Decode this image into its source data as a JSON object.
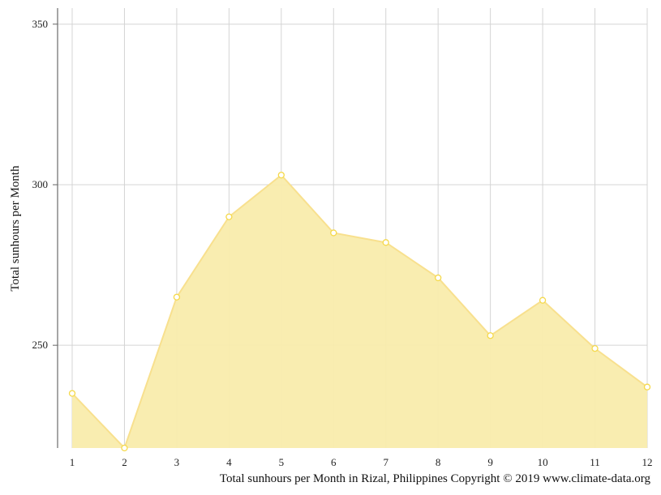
{
  "chart_data": {
    "type": "area",
    "title": "",
    "xlabel": "",
    "ylabel": "Total sunhours per Month",
    "x": [
      1,
      2,
      3,
      4,
      5,
      6,
      7,
      8,
      9,
      10,
      11,
      12
    ],
    "series": [
      {
        "values": [
          235,
          218,
          265,
          290,
          303,
          285,
          282,
          271,
          253,
          264,
          249,
          237
        ]
      }
    ],
    "ylim": [
      218,
      355
    ],
    "yticks": [
      250,
      300,
      350
    ],
    "grid": true,
    "legend": "none",
    "colors": {
      "fill": "#f9ecac",
      "line": "#f8e08e",
      "marker": "#f5d94a",
      "grid": "#d4d4d4"
    }
  },
  "caption": "Total sunhours per Month in Rizal, Philippines Copyright © 2019 www.climate-data.org"
}
